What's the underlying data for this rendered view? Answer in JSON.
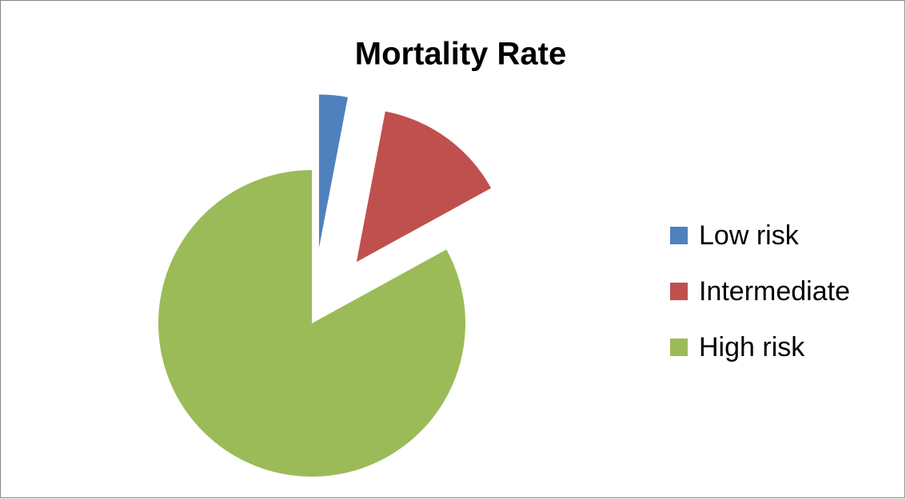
{
  "chart_data": {
    "type": "pie",
    "title": "Mortality Rate",
    "categories": [
      "Low risk",
      "Intermediate",
      "High risk"
    ],
    "values": [
      3,
      14,
      83
    ],
    "colors": [
      "#4f81bd",
      "#c0504d",
      "#9bbb59"
    ],
    "exploded": [
      true,
      true,
      false
    ],
    "legend": "right"
  }
}
